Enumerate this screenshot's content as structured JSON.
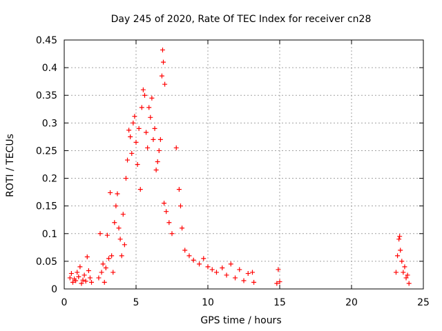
{
  "chart_data": {
    "type": "scatter",
    "title": "Day 245 of 2020, Rate Of TEC Index for receiver cn28",
    "xlabel": "GPS time / hours",
    "ylabel": "ROTI / TECUs",
    "xlim": [
      0,
      25
    ],
    "ylim": [
      0,
      0.45
    ],
    "xticks": [
      0,
      5,
      10,
      15,
      20,
      25
    ],
    "xtick_labels": [
      "0",
      "5",
      "10",
      "15",
      "20",
      "25"
    ],
    "yticks": [
      0,
      0.05,
      0.1,
      0.15,
      0.2,
      0.25,
      0.3,
      0.35,
      0.4,
      0.45
    ],
    "ytick_labels": [
      "0",
      "0.05",
      "0.1",
      "0.15",
      "0.2",
      "0.25",
      "0.3",
      "0.35",
      "0.4",
      "0.45"
    ],
    "grid": true,
    "marker": "+",
    "color": "#ff0000",
    "series": [
      {
        "name": "ROTI",
        "points": [
          [
            0.4,
            0.02
          ],
          [
            0.5,
            0.028
          ],
          [
            0.6,
            0.012
          ],
          [
            0.7,
            0.018
          ],
          [
            0.8,
            0.015
          ],
          [
            0.9,
            0.03
          ],
          [
            1.0,
            0.022
          ],
          [
            1.1,
            0.04
          ],
          [
            1.2,
            0.01
          ],
          [
            1.3,
            0.016
          ],
          [
            1.4,
            0.025
          ],
          [
            1.5,
            0.014
          ],
          [
            1.6,
            0.058
          ],
          [
            1.7,
            0.033
          ],
          [
            1.8,
            0.02
          ],
          [
            1.9,
            0.012
          ],
          [
            2.4,
            0.02
          ],
          [
            2.5,
            0.1
          ],
          [
            2.6,
            0.03
          ],
          [
            2.7,
            0.045
          ],
          [
            2.8,
            0.012
          ],
          [
            2.9,
            0.038
          ],
          [
            3.0,
            0.097
          ],
          [
            3.1,
            0.055
          ],
          [
            3.2,
            0.174
          ],
          [
            3.3,
            0.06
          ],
          [
            3.4,
            0.03
          ],
          [
            3.5,
            0.12
          ],
          [
            3.6,
            0.15
          ],
          [
            3.7,
            0.172
          ],
          [
            3.8,
            0.11
          ],
          [
            3.9,
            0.09
          ],
          [
            4.0,
            0.06
          ],
          [
            4.1,
            0.135
          ],
          [
            4.2,
            0.08
          ],
          [
            4.3,
            0.2
          ],
          [
            4.4,
            0.233
          ],
          [
            4.5,
            0.287
          ],
          [
            4.6,
            0.275
          ],
          [
            4.7,
            0.245
          ],
          [
            4.8,
            0.3
          ],
          [
            4.9,
            0.312
          ],
          [
            5.0,
            0.265
          ],
          [
            5.1,
            0.225
          ],
          [
            5.2,
            0.29
          ],
          [
            5.3,
            0.18
          ],
          [
            5.4,
            0.328
          ],
          [
            5.5,
            0.36
          ],
          [
            5.6,
            0.35
          ],
          [
            5.7,
            0.283
          ],
          [
            5.8,
            0.255
          ],
          [
            5.9,
            0.328
          ],
          [
            6.0,
            0.31
          ],
          [
            6.1,
            0.345
          ],
          [
            6.2,
            0.27
          ],
          [
            6.3,
            0.29
          ],
          [
            6.4,
            0.215
          ],
          [
            6.5,
            0.23
          ],
          [
            6.6,
            0.25
          ],
          [
            6.7,
            0.27
          ],
          [
            6.8,
            0.385
          ],
          [
            6.85,
            0.432
          ],
          [
            6.9,
            0.41
          ],
          [
            7.0,
            0.37
          ],
          [
            6.95,
            0.155
          ],
          [
            7.1,
            0.14
          ],
          [
            7.3,
            0.12
          ],
          [
            7.5,
            0.1
          ],
          [
            7.8,
            0.255
          ],
          [
            8.0,
            0.18
          ],
          [
            8.1,
            0.15
          ],
          [
            8.2,
            0.11
          ],
          [
            8.4,
            0.07
          ],
          [
            8.7,
            0.06
          ],
          [
            9.0,
            0.052
          ],
          [
            9.4,
            0.045
          ],
          [
            9.7,
            0.055
          ],
          [
            10.0,
            0.04
          ],
          [
            10.3,
            0.035
          ],
          [
            10.6,
            0.03
          ],
          [
            11.0,
            0.038
          ],
          [
            11.3,
            0.025
          ],
          [
            11.6,
            0.045
          ],
          [
            11.9,
            0.02
          ],
          [
            12.2,
            0.035
          ],
          [
            12.5,
            0.015
          ],
          [
            12.8,
            0.028
          ],
          [
            13.1,
            0.03
          ],
          [
            13.2,
            0.012
          ],
          [
            14.8,
            0.01
          ],
          [
            14.9,
            0.035
          ],
          [
            15.0,
            0.013
          ],
          [
            23.1,
            0.03
          ],
          [
            23.2,
            0.06
          ],
          [
            23.3,
            0.09
          ],
          [
            23.35,
            0.095
          ],
          [
            23.4,
            0.07
          ],
          [
            23.5,
            0.05
          ],
          [
            23.6,
            0.03
          ],
          [
            23.7,
            0.04
          ],
          [
            23.8,
            0.02
          ],
          [
            23.9,
            0.025
          ],
          [
            24.0,
            0.01
          ]
        ]
      }
    ]
  }
}
